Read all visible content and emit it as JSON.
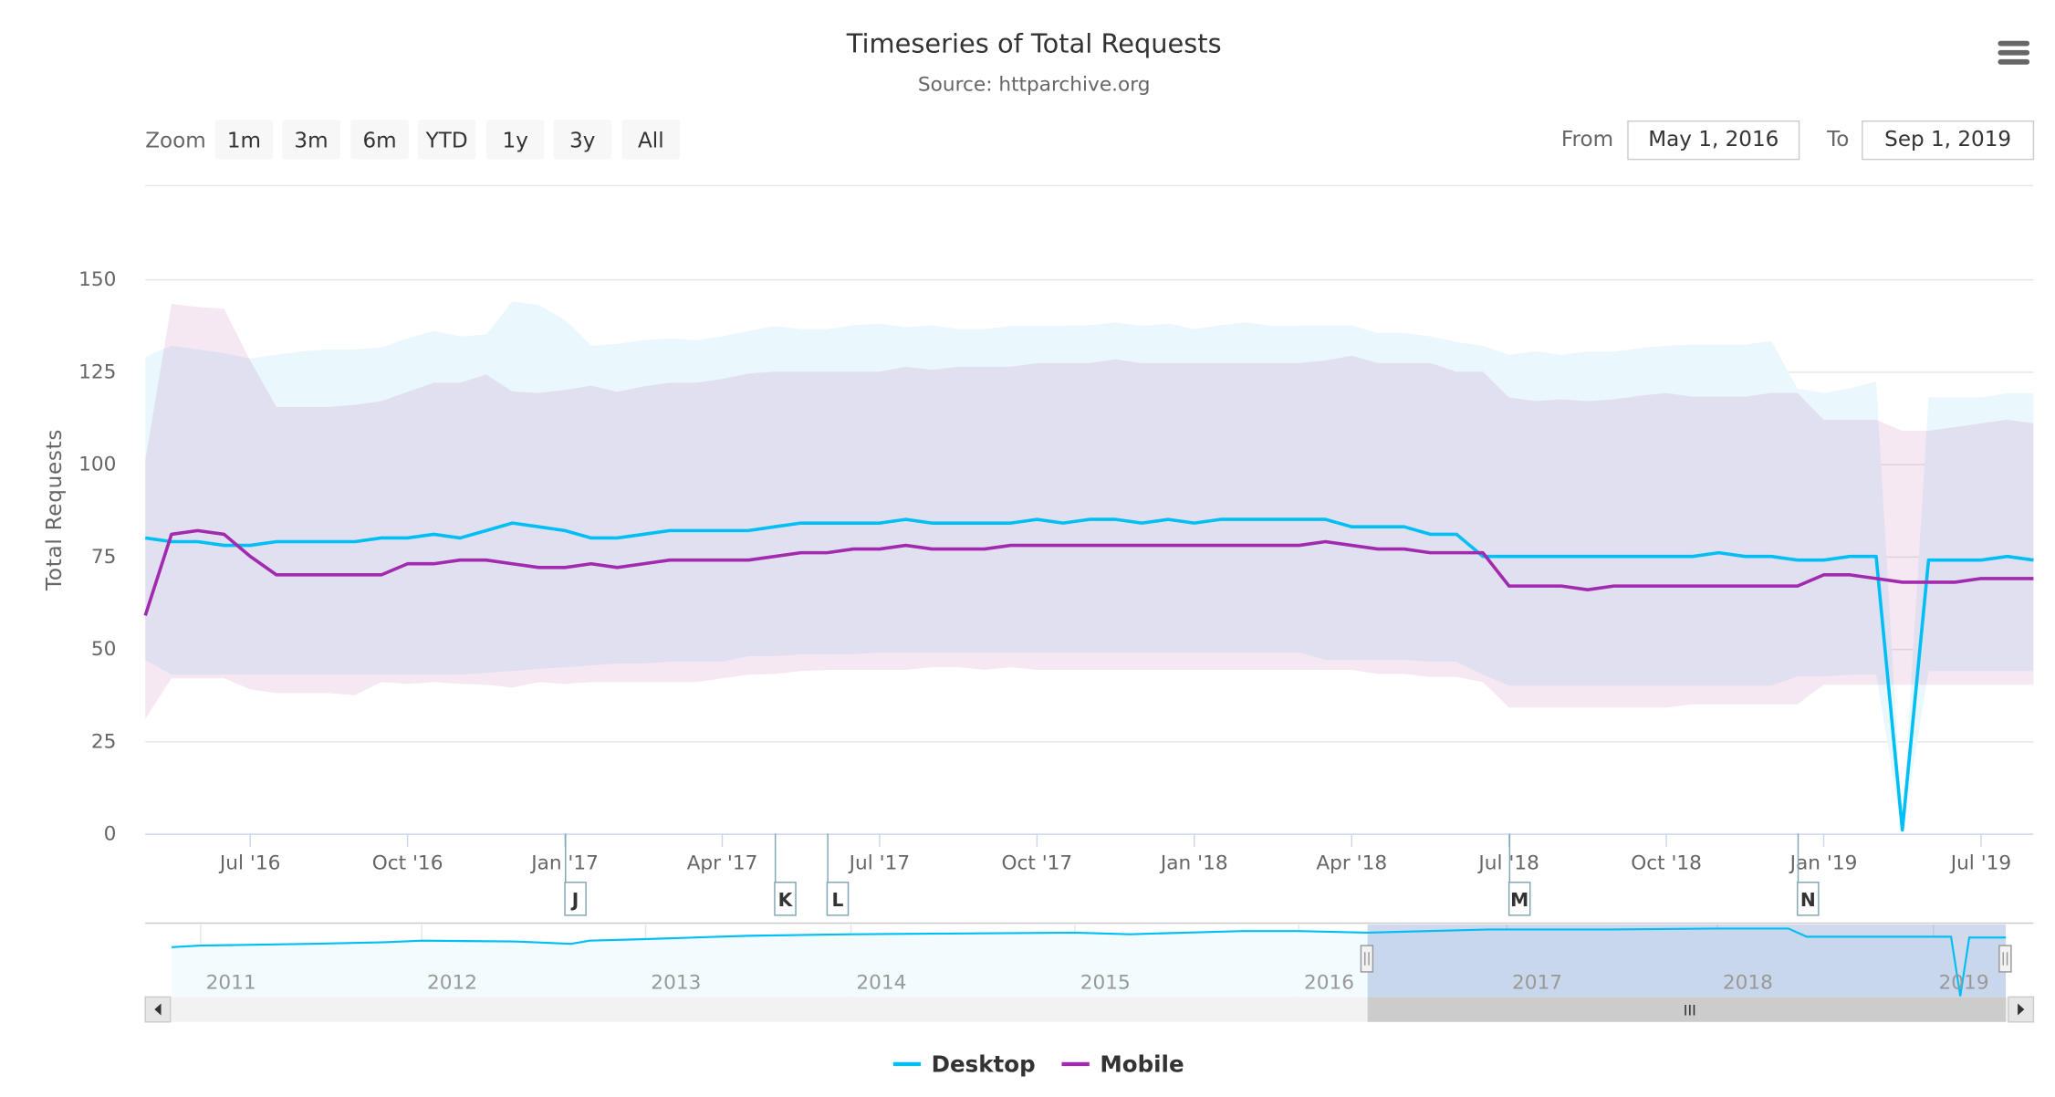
{
  "header": {
    "title": "Timeseries of Total Requests",
    "subtitle": "Source: httparchive.org",
    "menu_icon": "hamburger-menu-icon"
  },
  "range_selector": {
    "zoom_label": "Zoom",
    "buttons": [
      "1m",
      "3m",
      "6m",
      "YTD",
      "1y",
      "3y",
      "All"
    ],
    "from_label": "From",
    "from_value": "May 1, 2016",
    "to_label": "To",
    "to_value": "Sep 1, 2019"
  },
  "chart_data": {
    "type": "line",
    "title": "Timeseries of Total Requests",
    "subtitle": "Source: httparchive.org",
    "ylabel": "Total Requests",
    "xlabel": "",
    "ylim": [
      0,
      150
    ],
    "yticks": [
      0,
      25,
      50,
      75,
      100,
      125,
      150
    ],
    "grid": true,
    "x_axis_type": "ordinal-datetime",
    "legend_position": "bottom-center",
    "xticks": [
      {
        "date": "2016-07-01",
        "label": "Jul '16"
      },
      {
        "date": "2016-10-01",
        "label": "Oct '16"
      },
      {
        "date": "2017-01-01",
        "label": "Jan '17"
      },
      {
        "date": "2017-04-01",
        "label": "Apr '17"
      },
      {
        "date": "2017-07-01",
        "label": "Jul '17"
      },
      {
        "date": "2017-10-01",
        "label": "Oct '17"
      },
      {
        "date": "2018-01-01",
        "label": "Jan '18"
      },
      {
        "date": "2018-04-01",
        "label": "Apr '18"
      },
      {
        "date": "2018-07-01",
        "label": "Jul '18"
      },
      {
        "date": "2018-10-01",
        "label": "Oct '18"
      },
      {
        "date": "2019-01-01",
        "label": "Jan '19"
      },
      {
        "date": "2019-07-01",
        "label": "Jul '19"
      }
    ],
    "x": [
      "2016-05-01",
      "2016-05-15",
      "2016-06-01",
      "2016-06-15",
      "2016-07-01",
      "2016-07-15",
      "2016-08-01",
      "2016-08-15",
      "2016-09-01",
      "2016-09-15",
      "2016-10-01",
      "2016-10-15",
      "2016-11-01",
      "2016-11-15",
      "2016-12-01",
      "2016-12-15",
      "2017-01-01",
      "2017-01-15",
      "2017-02-01",
      "2017-02-15",
      "2017-03-01",
      "2017-03-15",
      "2017-04-01",
      "2017-04-15",
      "2017-05-01",
      "2017-05-15",
      "2017-06-01",
      "2017-06-15",
      "2017-07-01",
      "2017-07-15",
      "2017-08-01",
      "2017-08-15",
      "2017-09-01",
      "2017-09-15",
      "2017-10-01",
      "2017-10-15",
      "2017-11-01",
      "2017-11-15",
      "2017-12-01",
      "2017-12-15",
      "2018-01-01",
      "2018-01-15",
      "2018-02-01",
      "2018-02-15",
      "2018-03-01",
      "2018-03-15",
      "2018-04-01",
      "2018-04-15",
      "2018-05-01",
      "2018-05-15",
      "2018-06-01",
      "2018-06-15",
      "2018-07-01",
      "2018-07-15",
      "2018-08-01",
      "2018-08-15",
      "2018-09-01",
      "2018-09-15",
      "2018-10-01",
      "2018-10-15",
      "2018-11-01",
      "2018-11-15",
      "2018-12-01",
      "2018-12-15",
      "2019-01-01",
      "2019-02-01",
      "2019-03-01",
      "2019-04-01",
      "2019-05-01",
      "2019-06-01",
      "2019-07-01",
      "2019-08-01",
      "2019-09-01"
    ],
    "series": [
      {
        "name": "Desktop",
        "color": "#00bff5",
        "band_color": "#eaf7fd",
        "values": [
          80,
          79,
          79,
          78,
          78,
          79,
          79,
          79,
          79,
          80,
          80,
          81,
          80,
          82,
          84,
          83,
          82,
          80,
          80,
          81,
          82,
          82,
          82,
          82,
          83,
          84,
          84,
          84,
          84,
          85,
          84,
          84,
          84,
          84,
          85,
          84,
          85,
          85,
          84,
          85,
          84,
          85,
          85,
          85,
          85,
          85,
          83,
          83,
          83,
          81,
          81,
          75,
          75,
          75,
          75,
          75,
          75,
          75,
          75,
          75,
          76,
          75,
          75,
          74,
          74,
          75,
          75,
          1,
          74,
          74,
          74,
          75,
          74
        ],
        "range_high": [
          129,
          132,
          131,
          130,
          128.5,
          129.5,
          130.5,
          131,
          131,
          131.5,
          134,
          136,
          134.5,
          135,
          144,
          143,
          139,
          132,
          132.5,
          133.5,
          134,
          133.5,
          134.5,
          136,
          137.3,
          136.5,
          136.5,
          137.5,
          138,
          137,
          137.5,
          136.5,
          136.5,
          137.3,
          137.3,
          137.3,
          137.5,
          138.3,
          137.3,
          138,
          136.5,
          137.5,
          138.3,
          137.3,
          137.3,
          137.5,
          137.5,
          135.4,
          135.4,
          134.5,
          133,
          132,
          129.5,
          130.5,
          129.5,
          130.4,
          130.4,
          131.3,
          132,
          132.3,
          132.3,
          132.3,
          133.3,
          120.4,
          119.2,
          120.5,
          122.3,
          2,
          118,
          118,
          118,
          119.2,
          119.2
        ],
        "range_low": [
          47,
          43,
          43,
          43,
          43,
          43,
          43,
          43,
          43,
          43,
          43,
          43,
          43,
          43.5,
          44,
          44.5,
          45,
          45.5,
          46,
          46,
          46.5,
          46.5,
          46.5,
          48,
          48,
          48.5,
          48.5,
          48.5,
          49,
          49,
          49,
          49,
          49,
          49,
          49,
          49,
          49,
          49,
          49,
          49,
          49,
          49,
          49,
          49,
          49,
          47,
          47,
          47,
          47,
          46.5,
          46.5,
          43,
          40,
          40,
          40,
          40,
          40,
          40,
          40,
          40,
          40,
          40,
          40,
          42.5,
          42.5,
          43,
          43,
          0,
          44,
          44,
          44,
          44,
          44
        ]
      },
      {
        "name": "Mobile",
        "color": "#a12aae",
        "band_color": "#f6e8f3",
        "values": [
          59,
          81,
          82,
          81,
          75,
          70,
          70,
          70,
          70,
          70,
          73,
          73,
          74,
          74,
          73,
          72,
          72,
          73,
          72,
          73,
          74,
          74,
          74,
          74,
          75,
          76,
          76,
          77,
          77,
          78,
          77,
          77,
          77,
          78,
          78,
          78,
          78,
          78,
          78,
          78,
          78,
          78,
          78,
          78,
          78,
          79,
          78,
          77,
          77,
          76,
          76,
          76,
          67,
          67,
          67,
          66,
          67,
          67,
          67,
          67,
          67,
          67,
          67,
          67,
          70,
          70,
          69,
          68,
          68,
          68,
          69,
          69,
          69
        ],
        "range_high": [
          101,
          143.3,
          142.5,
          142,
          128,
          115.4,
          115.4,
          115.4,
          116,
          117,
          119.5,
          122,
          122,
          124.2,
          119.6,
          119.2,
          120,
          121.2,
          119.5,
          121,
          122,
          122,
          123,
          124.5,
          125,
          125,
          125,
          125,
          125,
          126.3,
          125.5,
          126.3,
          126.3,
          126.3,
          127.3,
          127.3,
          127.3,
          128.3,
          127.3,
          127.3,
          127.3,
          127.3,
          127.3,
          127.3,
          127.3,
          128,
          129.3,
          127.3,
          127.3,
          127.3,
          125,
          125,
          118,
          117,
          117.5,
          117,
          117.5,
          118.5,
          119.2,
          118.2,
          118.2,
          118.2,
          119.2,
          119.2,
          112,
          112,
          112,
          109,
          109,
          110,
          111,
          112,
          111
        ],
        "range_low": [
          31,
          42,
          42,
          42,
          39,
          38,
          38,
          38,
          37.5,
          41,
          40.5,
          41,
          40.5,
          40.3,
          39.5,
          41,
          40.5,
          41,
          41,
          41,
          41,
          41,
          42,
          43,
          43.2,
          44,
          44.3,
          44.3,
          44.3,
          44.3,
          45,
          45,
          44.3,
          45,
          44.3,
          44.3,
          44.3,
          44.3,
          44.3,
          44.3,
          44.3,
          44.3,
          44.3,
          44.3,
          44.3,
          44.3,
          44.3,
          43.2,
          43.2,
          42.4,
          42.4,
          41,
          34.1,
          34.1,
          34.1,
          34.1,
          34.1,
          34.1,
          34.1,
          35,
          35,
          35,
          35,
          35,
          40.3,
          40.3,
          40.3,
          40.3,
          40.3,
          40.3,
          40.3,
          40.3,
          40.3
        ]
      }
    ],
    "flags": [
      {
        "date": "2017-01-01",
        "label": "J"
      },
      {
        "date": "2017-05-01",
        "label": "K"
      },
      {
        "date": "2017-06-01",
        "label": "L"
      },
      {
        "date": "2018-07-01",
        "label": "M"
      },
      {
        "date": "2018-12-15",
        "label": "N"
      }
    ],
    "navigator": {
      "series_name": "Desktop",
      "selected_from": "2016-05-01",
      "selected_to": "2019-09-01",
      "year_labels": [
        "2011",
        "2012",
        "2013",
        "2014",
        "2015",
        "2016",
        "2017",
        "2018",
        "2019"
      ],
      "x": [
        "2010-11-15",
        "2011-01-01",
        "2011-07-01",
        "2011-11-01",
        "2012-01-01",
        "2012-06-01",
        "2012-09-01",
        "2012-10-01",
        "2013-01-01",
        "2013-07-01",
        "2014-01-01",
        "2014-07-01",
        "2015-01-01",
        "2015-04-01",
        "2015-07-01",
        "2015-10-01",
        "2016-01-01",
        "2016-05-01",
        "2016-12-01",
        "2017-07-01",
        "2018-01-01",
        "2018-05-01",
        "2018-06-01",
        "2019-01-01",
        "2019-03-01",
        "2019-04-01",
        "2019-05-01",
        "2019-09-01"
      ],
      "values": [
        62,
        64,
        66,
        68,
        70,
        69,
        66,
        70,
        72,
        76,
        78,
        79,
        80,
        78,
        80,
        82,
        82,
        80,
        84,
        84,
        85,
        85,
        75,
        75,
        75,
        1,
        74,
        74
      ]
    }
  },
  "legend": {
    "items": [
      {
        "label": "Desktop",
        "color": "#00bff5"
      },
      {
        "label": "Mobile",
        "color": "#a12aae"
      }
    ]
  },
  "scrollbar": {
    "left_icon": "arrow-left-icon",
    "right_icon": "arrow-right-icon",
    "grip_label": "III"
  }
}
